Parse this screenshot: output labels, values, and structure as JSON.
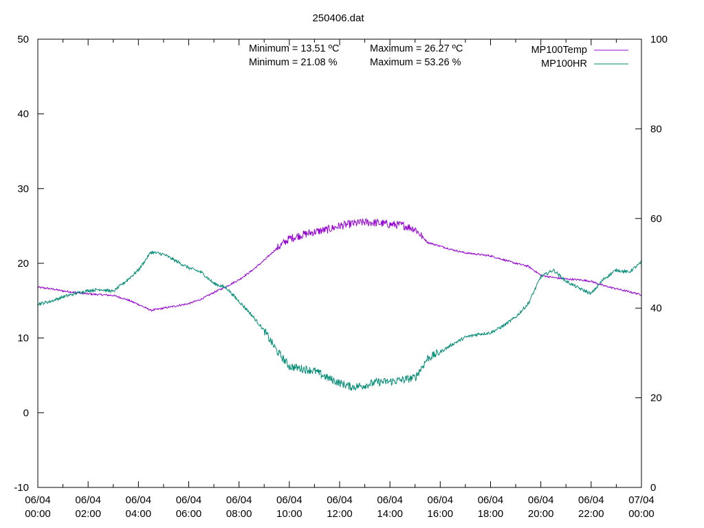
{
  "chart_data": {
    "type": "line",
    "title": "250406.dat",
    "x_ticks": [
      "06/04 00:00",
      "06/04 02:00",
      "06/04 04:00",
      "06/04 06:00",
      "06/04 08:00",
      "06/04 10:00",
      "06/04 12:00",
      "06/04 14:00",
      "06/04 16:00",
      "06/04 18:00",
      "06/04 20:00",
      "06/04 22:00",
      "07/04 00:00"
    ],
    "xlim_hours": [
      0,
      24
    ],
    "y1lim": [
      -10,
      50
    ],
    "y1_ticks": [
      "-10",
      "0",
      "10",
      "20",
      "30",
      "40",
      "50"
    ],
    "y2lim": [
      0,
      100
    ],
    "y2_ticks": [
      "0",
      "20",
      "40",
      "60",
      "80",
      "100"
    ],
    "grid": false,
    "legend_position": "top-right",
    "annotations": {
      "temp_min": "Minimum = 13.51 ºC",
      "temp_max": "Maximum = 26.27 ºC",
      "hr_min": "Minimum = 21.08 %",
      "hr_max": "Maximum = 53.26 %"
    },
    "series": [
      {
        "name": "MP100Temp",
        "axis": "y1",
        "color": "#9400d3",
        "x_hours": [
          0,
          0.5,
          1,
          1.5,
          2,
          2.5,
          3,
          3.5,
          4,
          4.5,
          5,
          5.5,
          6,
          6.5,
          7,
          7.5,
          8,
          8.5,
          9,
          9.5,
          10,
          10.5,
          11,
          11.5,
          12,
          12.5,
          13,
          13.5,
          14,
          14.5,
          15,
          15.5,
          16,
          16.5,
          17,
          17.5,
          18,
          18.5,
          19,
          19.5,
          20,
          20.5,
          21,
          21.5,
          22,
          22.5,
          23,
          23.5,
          24
        ],
        "values": [
          16.8,
          16.6,
          16.3,
          16.1,
          15.9,
          15.8,
          15.7,
          15.2,
          14.5,
          13.7,
          14.0,
          14.3,
          14.6,
          15.2,
          16.1,
          16.9,
          17.8,
          19.0,
          20.4,
          22.0,
          23.3,
          23.8,
          24.2,
          24.5,
          25.0,
          25.3,
          25.5,
          25.4,
          25.2,
          25.1,
          24.6,
          22.8,
          22.3,
          21.8,
          21.4,
          21.2,
          21.0,
          20.5,
          20.0,
          19.6,
          18.4,
          18.1,
          17.9,
          17.8,
          17.6,
          17.0,
          16.6,
          16.2,
          15.8
        ]
      },
      {
        "name": "MP100HR",
        "axis": "y2",
        "color": "#008b74",
        "x_hours": [
          0,
          0.5,
          1,
          1.5,
          2,
          2.5,
          3,
          3.5,
          4,
          4.5,
          5,
          5.5,
          6,
          6.5,
          7,
          7.5,
          8,
          8.5,
          9,
          9.5,
          10,
          10.5,
          11,
          11.5,
          12,
          12.5,
          13,
          13.5,
          14,
          14.5,
          15,
          15.5,
          16,
          16.5,
          17,
          17.5,
          18,
          18.5,
          19,
          19.5,
          20,
          20.5,
          21,
          21.5,
          22,
          22.5,
          23,
          23.5,
          24
        ],
        "values": [
          40.9,
          41.5,
          42.5,
          43.3,
          43.9,
          44.2,
          43.7,
          46.0,
          48.5,
          52.5,
          52.0,
          50.5,
          49.0,
          48.0,
          45.5,
          44.5,
          41.5,
          38.5,
          35.0,
          30.5,
          27.0,
          26.5,
          26.0,
          24.5,
          23.3,
          22.4,
          22.8,
          23.5,
          23.6,
          24.0,
          24.5,
          28.8,
          30.2,
          32.0,
          33.5,
          34.2,
          34.5,
          36.0,
          38.0,
          41.0,
          47.0,
          48.5,
          46.0,
          44.5,
          43.2,
          46.5,
          48.5,
          48.0,
          50.2
        ]
      }
    ]
  }
}
